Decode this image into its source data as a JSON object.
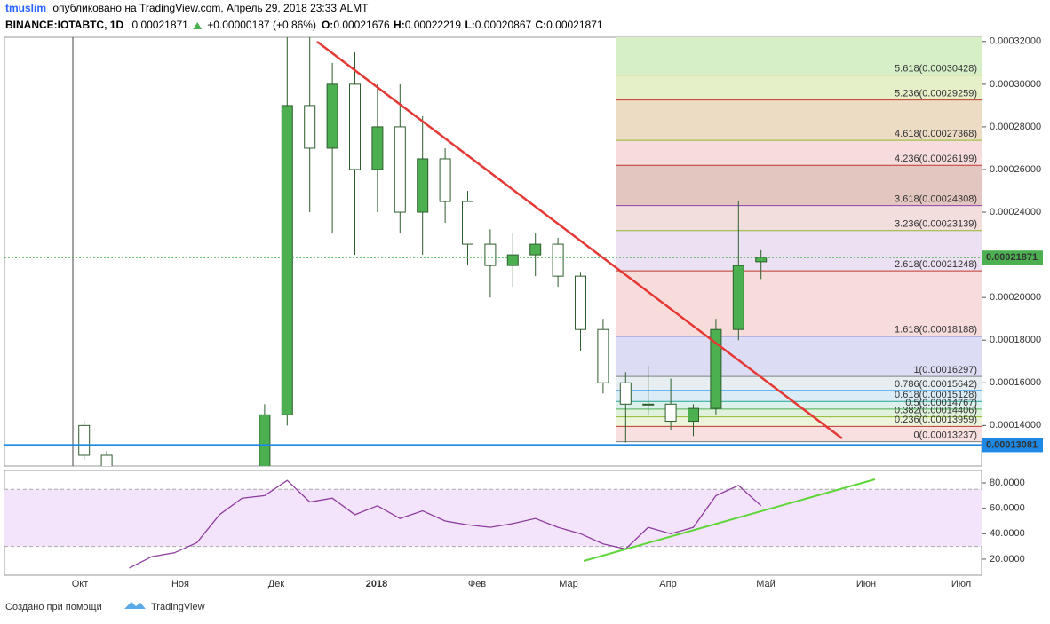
{
  "header": {
    "user": "tmuslim",
    "published": "опубликовано на TradingView.com, Апрель 29, 2018 23:33 ALMT",
    "symbol": "BINANCE:IOTABTC, 1D",
    "last": "0.00021871",
    "change": "+0.00000187 (+0.86%)",
    "ohlc": [
      {
        "label": "O:",
        "value": "0.00021676"
      },
      {
        "label": "H:",
        "value": "0.00022219"
      },
      {
        "label": "L:",
        "value": "0.00020867"
      },
      {
        "label": "C:",
        "value": "0.00021871"
      }
    ]
  },
  "chart_data": [
    {
      "type": "candlestick",
      "up_color": "#4caf50",
      "down_color": "#ffffff",
      "outline": "#2e5e2e",
      "open": [
        0.00014,
        0.000126,
        0.000114,
        0.00011,
        0.000106,
        0.000104,
        0.0001,
        0.000104,
        0.00011,
        0.000145,
        0.00029,
        0.00027,
        0.0003,
        0.00026,
        0.00028,
        0.00024,
        0.000265,
        0.000245,
        0.000225,
        0.000215,
        0.00022,
        0.000225,
        0.00021,
        0.000185,
        0.00016,
        0.00015,
        0.00015,
        0.000142,
        0.000148,
        0.000185,
        0.00021676
      ],
      "high": [
        0.000142,
        0.000128,
        0.000118,
        0.000114,
        0.00011,
        0.000108,
        0.000106,
        0.000112,
        0.00015,
        0.000322,
        0.000322,
        0.00031,
        0.000315,
        0.0003,
        0.0003,
        0.000285,
        0.00027,
        0.00025,
        0.000232,
        0.00023,
        0.00023,
        0.000228,
        0.000212,
        0.00019,
        0.000165,
        0.000168,
        0.000162,
        0.00015,
        0.00019,
        0.000245,
        0.00022219
      ],
      "low": [
        0.000124,
        0.000112,
        0.000108,
        0.000104,
        0.0001,
        9.8e-05,
        9.6e-05,
        0.000102,
        0.000108,
        0.00014,
        0.00024,
        0.00023,
        0.00022,
        0.00024,
        0.00023,
        0.00022,
        0.000235,
        0.000215,
        0.0002,
        0.000205,
        0.00021,
        0.000205,
        0.000175,
        0.000155,
        0.000132,
        0.000145,
        0.000138,
        0.000135,
        0.000145,
        0.00018,
        0.00020867
      ],
      "close": [
        0.000126,
        0.000114,
        0.00011,
        0.000106,
        0.000104,
        0.0001,
        0.000104,
        0.00011,
        0.000145,
        0.00029,
        0.00027,
        0.0003,
        0.00026,
        0.00028,
        0.00024,
        0.000265,
        0.000245,
        0.000225,
        0.000215,
        0.00022,
        0.000225,
        0.00021,
        0.000185,
        0.00016,
        0.00015,
        0.00015,
        0.000142,
        0.000148,
        0.000185,
        0.000215,
        0.00021871
      ],
      "ylim": [
        0.000121,
        0.000322
      ],
      "yticks": [
        {
          "value": 0.00014,
          "label": "0.00014000"
        },
        {
          "value": 0.00016,
          "label": "0.00016000"
        },
        {
          "value": 0.00018,
          "label": "0.00018000"
        },
        {
          "value": 0.0002,
          "label": "0.00020000"
        },
        {
          "value": 0.00022,
          "label": "0.00022000"
        },
        {
          "value": 0.00024,
          "label": "0.00024000"
        },
        {
          "value": 0.00026,
          "label": "0.00026000"
        },
        {
          "value": 0.00028,
          "label": "0.00028000"
        },
        {
          "value": 0.0003,
          "label": "0.00030000"
        },
        {
          "value": 0.00032,
          "label": "0.00032000"
        }
      ],
      "x_labels": [
        "Окт",
        "Ноя",
        "Дек",
        "2018",
        "Фев",
        "Мар",
        "Апр",
        "Май",
        "Июн",
        "Июл"
      ],
      "fib_levels": [
        {
          "label": "5.618(0.00030428)",
          "value": 0.00030428,
          "color": "#8fb832",
          "fill": "#d6efc6"
        },
        {
          "label": "5.236(0.00029259)",
          "value": 0.00029259,
          "color": "#c0392b",
          "fill": "#e5efc8"
        },
        {
          "label": "4.618(0.00027368)",
          "value": 0.00027368,
          "color": "#8fb832",
          "fill": "#ecdcc4"
        },
        {
          "label": "4.236(0.00026199)",
          "value": 0.00026199,
          "color": "#c0392b",
          "fill": "#f6dcdc"
        },
        {
          "label": "3.618(0.00024308)",
          "value": 0.00024308,
          "color": "#8e44ad",
          "fill": "#e3c6c0"
        },
        {
          "label": "3.236(0.00023139)",
          "value": 0.00023139,
          "color": "#8fb832",
          "fill": "#f3dede"
        },
        {
          "label": "2.618(0.00021248)",
          "value": 0.00021248,
          "color": "#c0392b",
          "fill": "#ece0f3"
        },
        {
          "label": "1.618(0.00018188)",
          "value": 0.00018188,
          "color": "#303f9f",
          "fill": "#f7dcdc"
        },
        {
          "label": "1(0.00016297)",
          "value": 0.00016297,
          "color": "#808080",
          "fill": "#dcdcf4"
        },
        {
          "label": "0.786(0.00015642)",
          "value": 0.00015642,
          "color": "#2196f3",
          "fill": "#e6eef2"
        },
        {
          "label": "0.618(0.00015128)",
          "value": 0.00015128,
          "color": "#26a69a",
          "fill": "#dcecf6"
        },
        {
          "label": "0.5(0.00014767)",
          "value": 0.00014767,
          "color": "#4caf50",
          "fill": "#dcf0ec"
        },
        {
          "label": "0.382(0.00014406)",
          "value": 0.00014406,
          "color": "#8fb832",
          "fill": "#e0f2dc"
        },
        {
          "label": "0.236(0.00013959)",
          "value": 0.00013959,
          "color": "#c0392b",
          "fill": "#ecf4dc"
        },
        {
          "label": "0(0.00013237)",
          "value": 0.00013237,
          "color": "#808080",
          "fill": "#f8e0e0"
        }
      ],
      "price_labels": [
        {
          "value": 0.00021871,
          "label": "0.00021871",
          "color": "#4caf50"
        },
        {
          "value": 0.00013081,
          "label": "0.00013081",
          "color": "#1e88e5"
        }
      ]
    },
    {
      "type": "line",
      "color": "#8e3c9e",
      "values": [
        null,
        null,
        13,
        22,
        25,
        33,
        55,
        68,
        70,
        82,
        65,
        68,
        55,
        62,
        52,
        58,
        50,
        47,
        45,
        48,
        52,
        45,
        40,
        32,
        28,
        45,
        40,
        45,
        70,
        78,
        62
      ],
      "ylim": [
        7.4,
        89.8
      ],
      "yticks": [
        {
          "value": 20,
          "label": "20.0000"
        },
        {
          "value": 40,
          "label": "40.0000"
        },
        {
          "value": 60,
          "label": "60.0000"
        },
        {
          "value": 80,
          "label": "80.0000"
        }
      ],
      "bands": [
        30,
        75
      ]
    }
  ],
  "footer": {
    "made_with": "Создано при помощи",
    "brand": "TradingView"
  }
}
